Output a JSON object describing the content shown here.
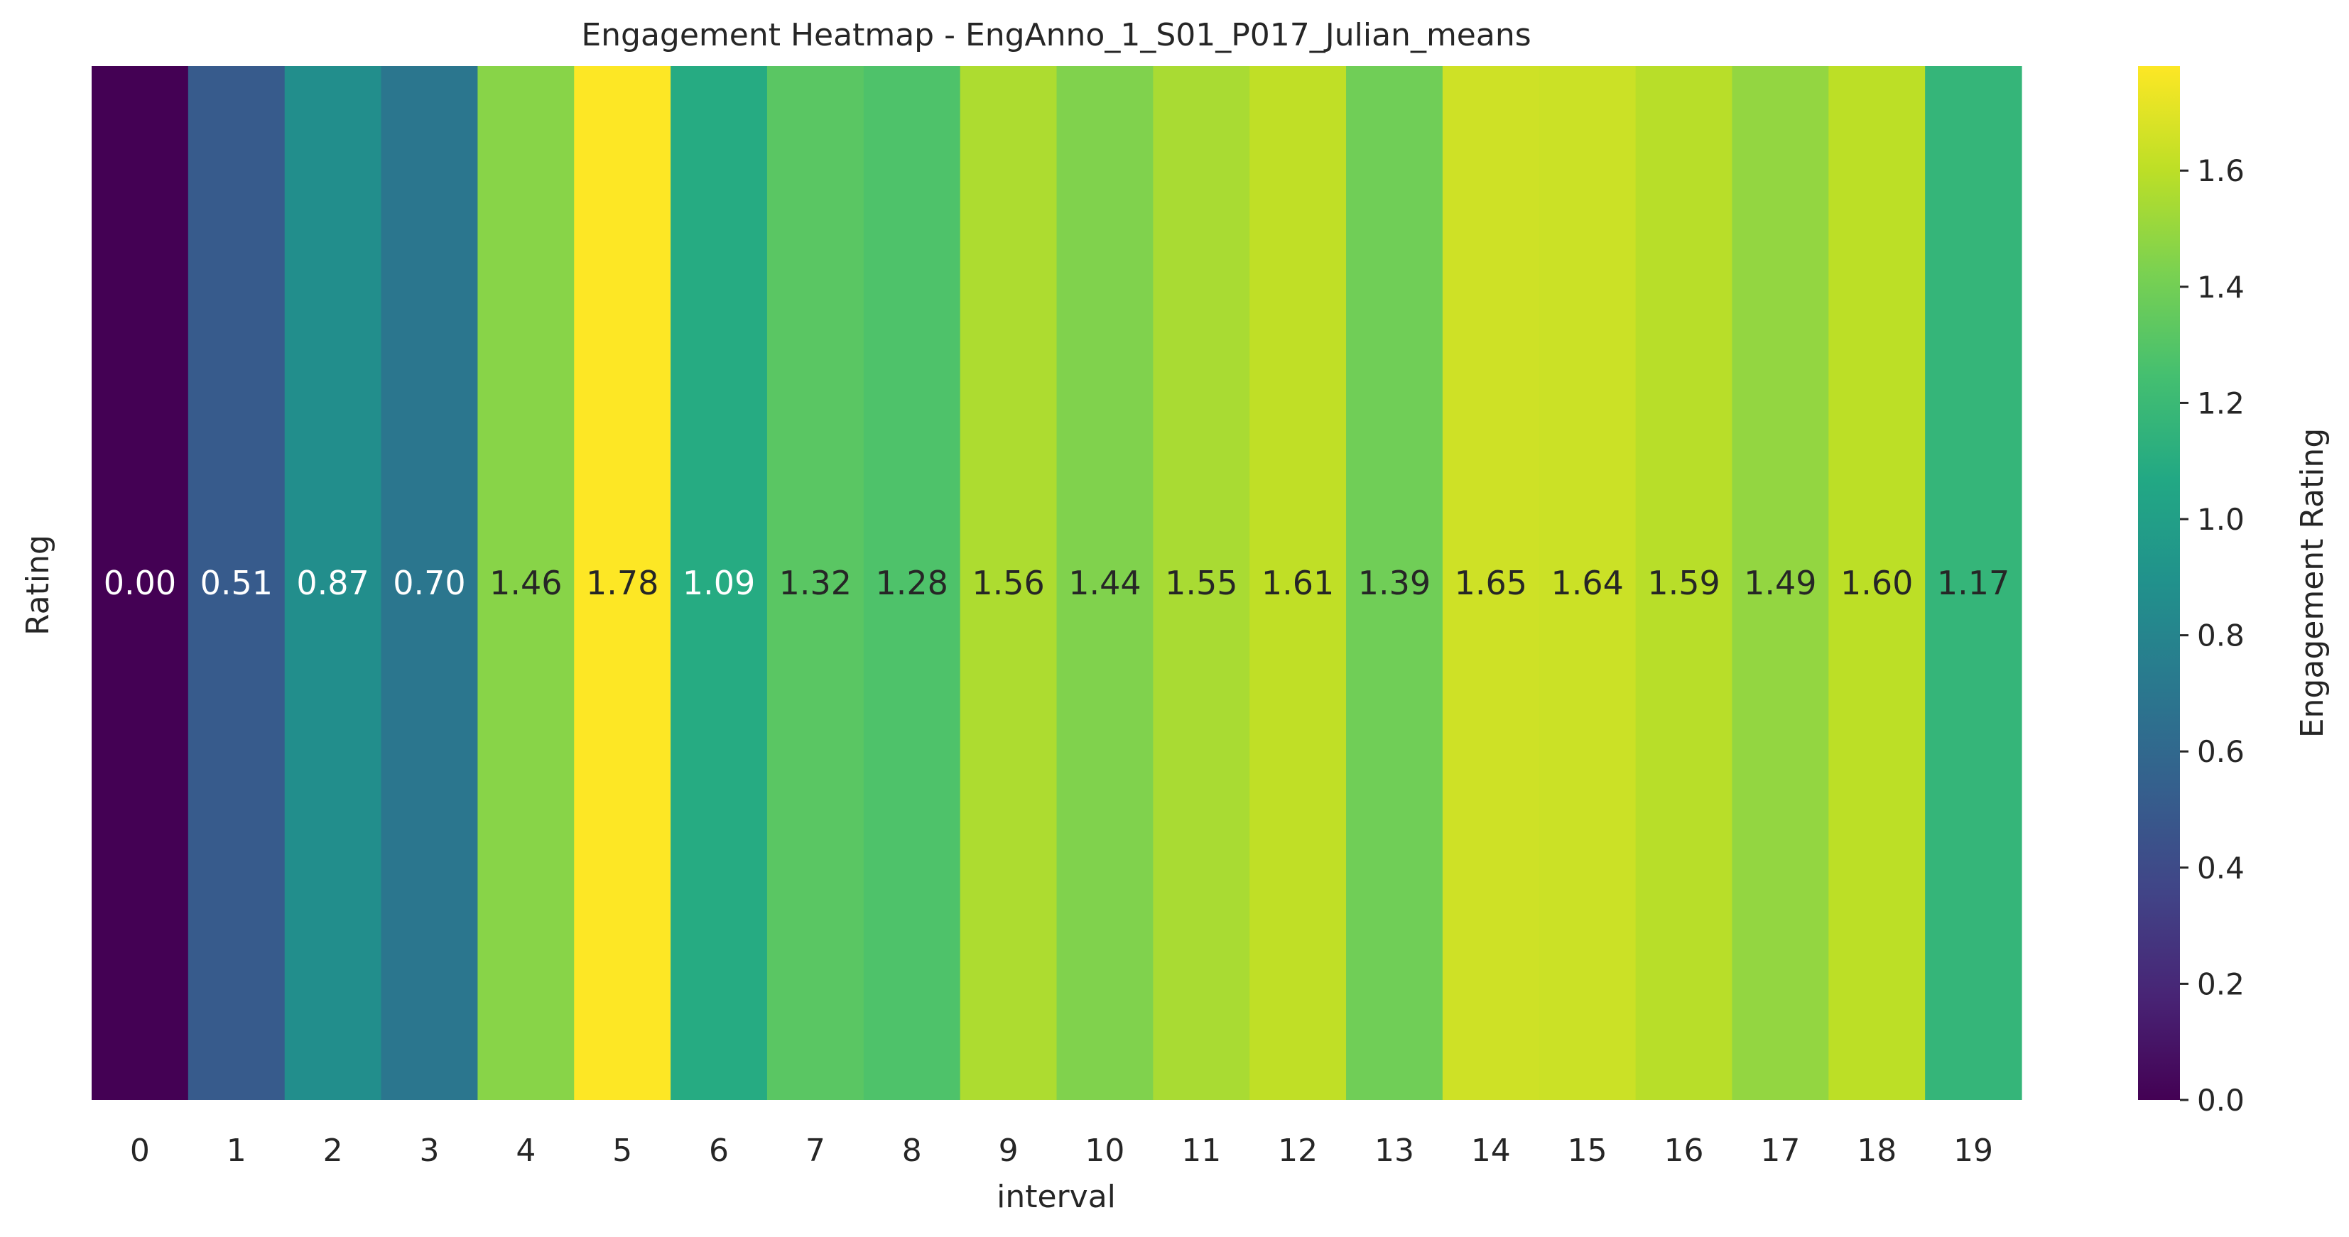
{
  "chart_data": {
    "type": "heatmap",
    "title": "Engagement Heatmap -  EngAnno_1_S01_P017_Julian_means",
    "xlabel": "interval",
    "ylabel": "Rating",
    "categories": [
      "0",
      "1",
      "2",
      "3",
      "4",
      "5",
      "6",
      "7",
      "8",
      "9",
      "10",
      "11",
      "12",
      "13",
      "14",
      "15",
      "16",
      "17",
      "18",
      "19"
    ],
    "values": [
      0.0,
      0.51,
      0.87,
      0.7,
      1.46,
      1.78,
      1.09,
      1.32,
      1.28,
      1.56,
      1.44,
      1.55,
      1.61,
      1.39,
      1.65,
      1.64,
      1.59,
      1.49,
      1.6,
      1.17
    ],
    "value_labels": [
      "0.00",
      "0.51",
      "0.87",
      "0.70",
      "1.46",
      "1.78",
      "1.09",
      "1.32",
      "1.28",
      "1.56",
      "1.44",
      "1.55",
      "1.61",
      "1.39",
      "1.65",
      "1.64",
      "1.59",
      "1.49",
      "1.60",
      "1.17"
    ],
    "colormap": "viridis",
    "vmin": 0.0,
    "vmax": 1.78,
    "colorbar": {
      "label": "Engagement Rating",
      "ticks": [
        0.0,
        0.2,
        0.4,
        0.6,
        0.8,
        1.0,
        1.2,
        1.4,
        1.6
      ],
      "tick_labels": [
        "0.0",
        "0.2",
        "0.4",
        "0.6",
        "0.8",
        "1.0",
        "1.2",
        "1.4",
        "1.6"
      ]
    },
    "grid": false,
    "legend": "none"
  }
}
